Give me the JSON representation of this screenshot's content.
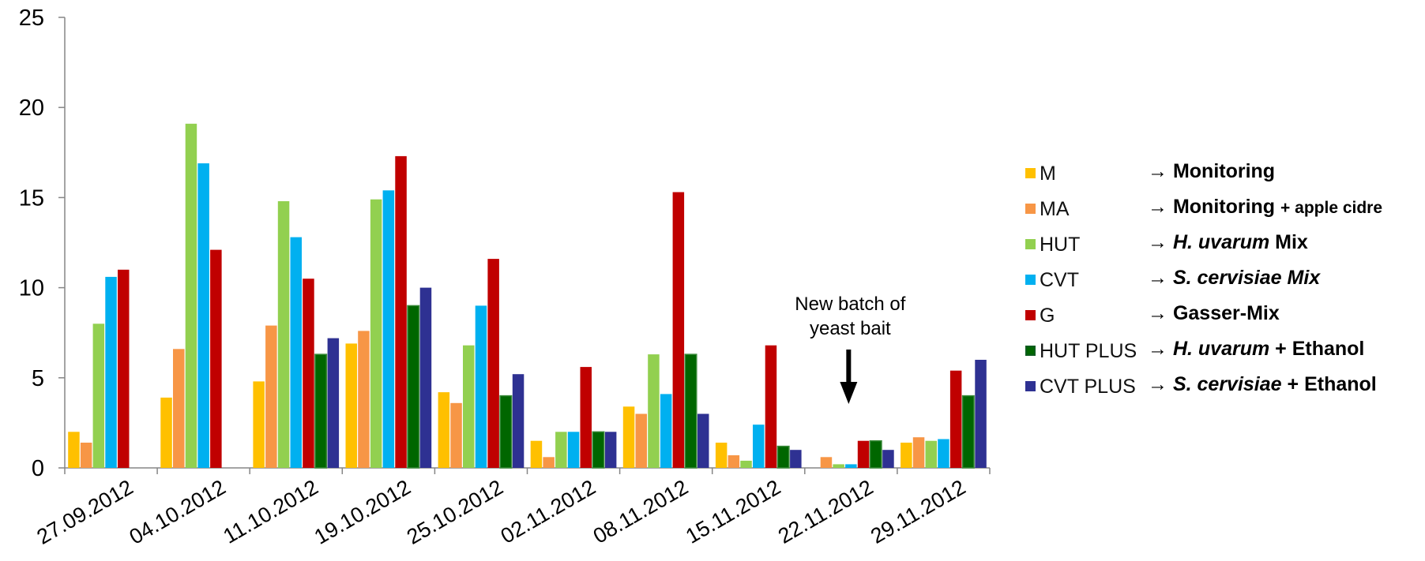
{
  "chart_data": {
    "type": "bar",
    "categories": [
      "27.09.2012",
      "04.10.2012",
      "11.10.2012",
      "19.10.2012",
      "25.10.2012",
      "02.11.2012",
      "08.11.2012",
      "15.11.2012",
      "22.11.2012",
      "29.11.2012"
    ],
    "ylim": [
      0,
      25
    ],
    "yticks": [
      "0",
      "5",
      "10",
      "15",
      "20",
      "25"
    ],
    "grid": false,
    "legend_position": "right",
    "series": [
      {
        "name": "M",
        "color": "#ffc000",
        "values": [
          2.0,
          3.9,
          4.8,
          6.9,
          4.2,
          1.5,
          3.4,
          1.4,
          0,
          1.4
        ]
      },
      {
        "name": "MA",
        "color": "#f79646",
        "values": [
          1.4,
          6.6,
          7.9,
          7.6,
          3.6,
          0.6,
          3.0,
          0.7,
          0.6,
          1.7
        ]
      },
      {
        "name": "HUT",
        "color": "#92d050",
        "values": [
          8.0,
          19.1,
          14.8,
          14.9,
          6.8,
          2.0,
          6.3,
          0.4,
          0.2,
          1.5
        ]
      },
      {
        "name": "CVT",
        "color": "#00b0f0",
        "values": [
          10.6,
          16.9,
          12.8,
          15.4,
          9.0,
          2.0,
          4.1,
          2.4,
          0.2,
          1.6
        ]
      },
      {
        "name": "G",
        "color": "#c00000",
        "values": [
          11.0,
          12.1,
          10.5,
          17.3,
          11.6,
          5.6,
          15.3,
          6.8,
          1.5,
          5.4
        ]
      },
      {
        "name": "HUT PLUS",
        "color": "#006600",
        "values": [
          0,
          0,
          6.3,
          9.0,
          4.0,
          2.0,
          6.3,
          1.2,
          1.5,
          4.0
        ]
      },
      {
        "name": "CVT PLUS",
        "color": "#2e3192",
        "values": [
          0,
          0,
          7.2,
          10.0,
          5.2,
          2.0,
          3.0,
          1.0,
          1.0,
          6.0
        ]
      }
    ],
    "annotations": [
      {
        "text_line1": "New  batch of",
        "text_line2": "yeast bait",
        "category": "22.11.2012",
        "arrow": "down"
      }
    ]
  },
  "legend": {
    "arrow": "→",
    "items": [
      {
        "code": "M",
        "desc_bold": "Monitoring"
      },
      {
        "code": "MA",
        "desc_bold": "Monitoring",
        "desc_small": "+ apple cidre"
      },
      {
        "code": "HUT",
        "desc_italic": "H. uvarum",
        "desc_bold": " Mix"
      },
      {
        "code": "CVT",
        "desc_italic": "S. cervisiae Mix"
      },
      {
        "code": "G",
        "desc_bold": "Gasser-Mix"
      },
      {
        "code": "HUT PLUS",
        "desc_italic": "H. uvarum",
        "desc_bold": " + Ethanol"
      },
      {
        "code": "CVT PLUS",
        "desc_italic": "S. cervisiae",
        "desc_bold": " + Ethanol"
      }
    ]
  }
}
